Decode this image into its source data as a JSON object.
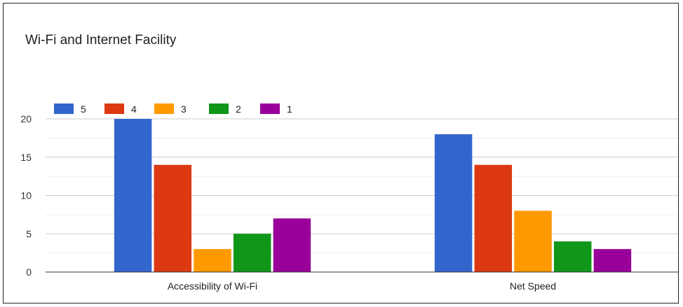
{
  "chart_data": {
    "type": "bar",
    "title": "Wi-Fi and Internet Facility",
    "categories": [
      "Accessibility of Wi-Fi",
      "Net Speed"
    ],
    "series": [
      {
        "name": "5",
        "color": "#3366cc",
        "values": [
          20,
          18
        ]
      },
      {
        "name": "4",
        "color": "#dc3912",
        "values": [
          14,
          14
        ]
      },
      {
        "name": "3",
        "color": "#ff9900",
        "values": [
          3,
          8
        ]
      },
      {
        "name": "2",
        "color": "#109618",
        "values": [
          5,
          4
        ]
      },
      {
        "name": "1",
        "color": "#990099",
        "values": [
          7,
          3
        ]
      }
    ],
    "ylim": [
      0,
      22
    ],
    "yticks": [
      0,
      5,
      10,
      15,
      20
    ],
    "grid": true,
    "legend_position": "top-left"
  }
}
